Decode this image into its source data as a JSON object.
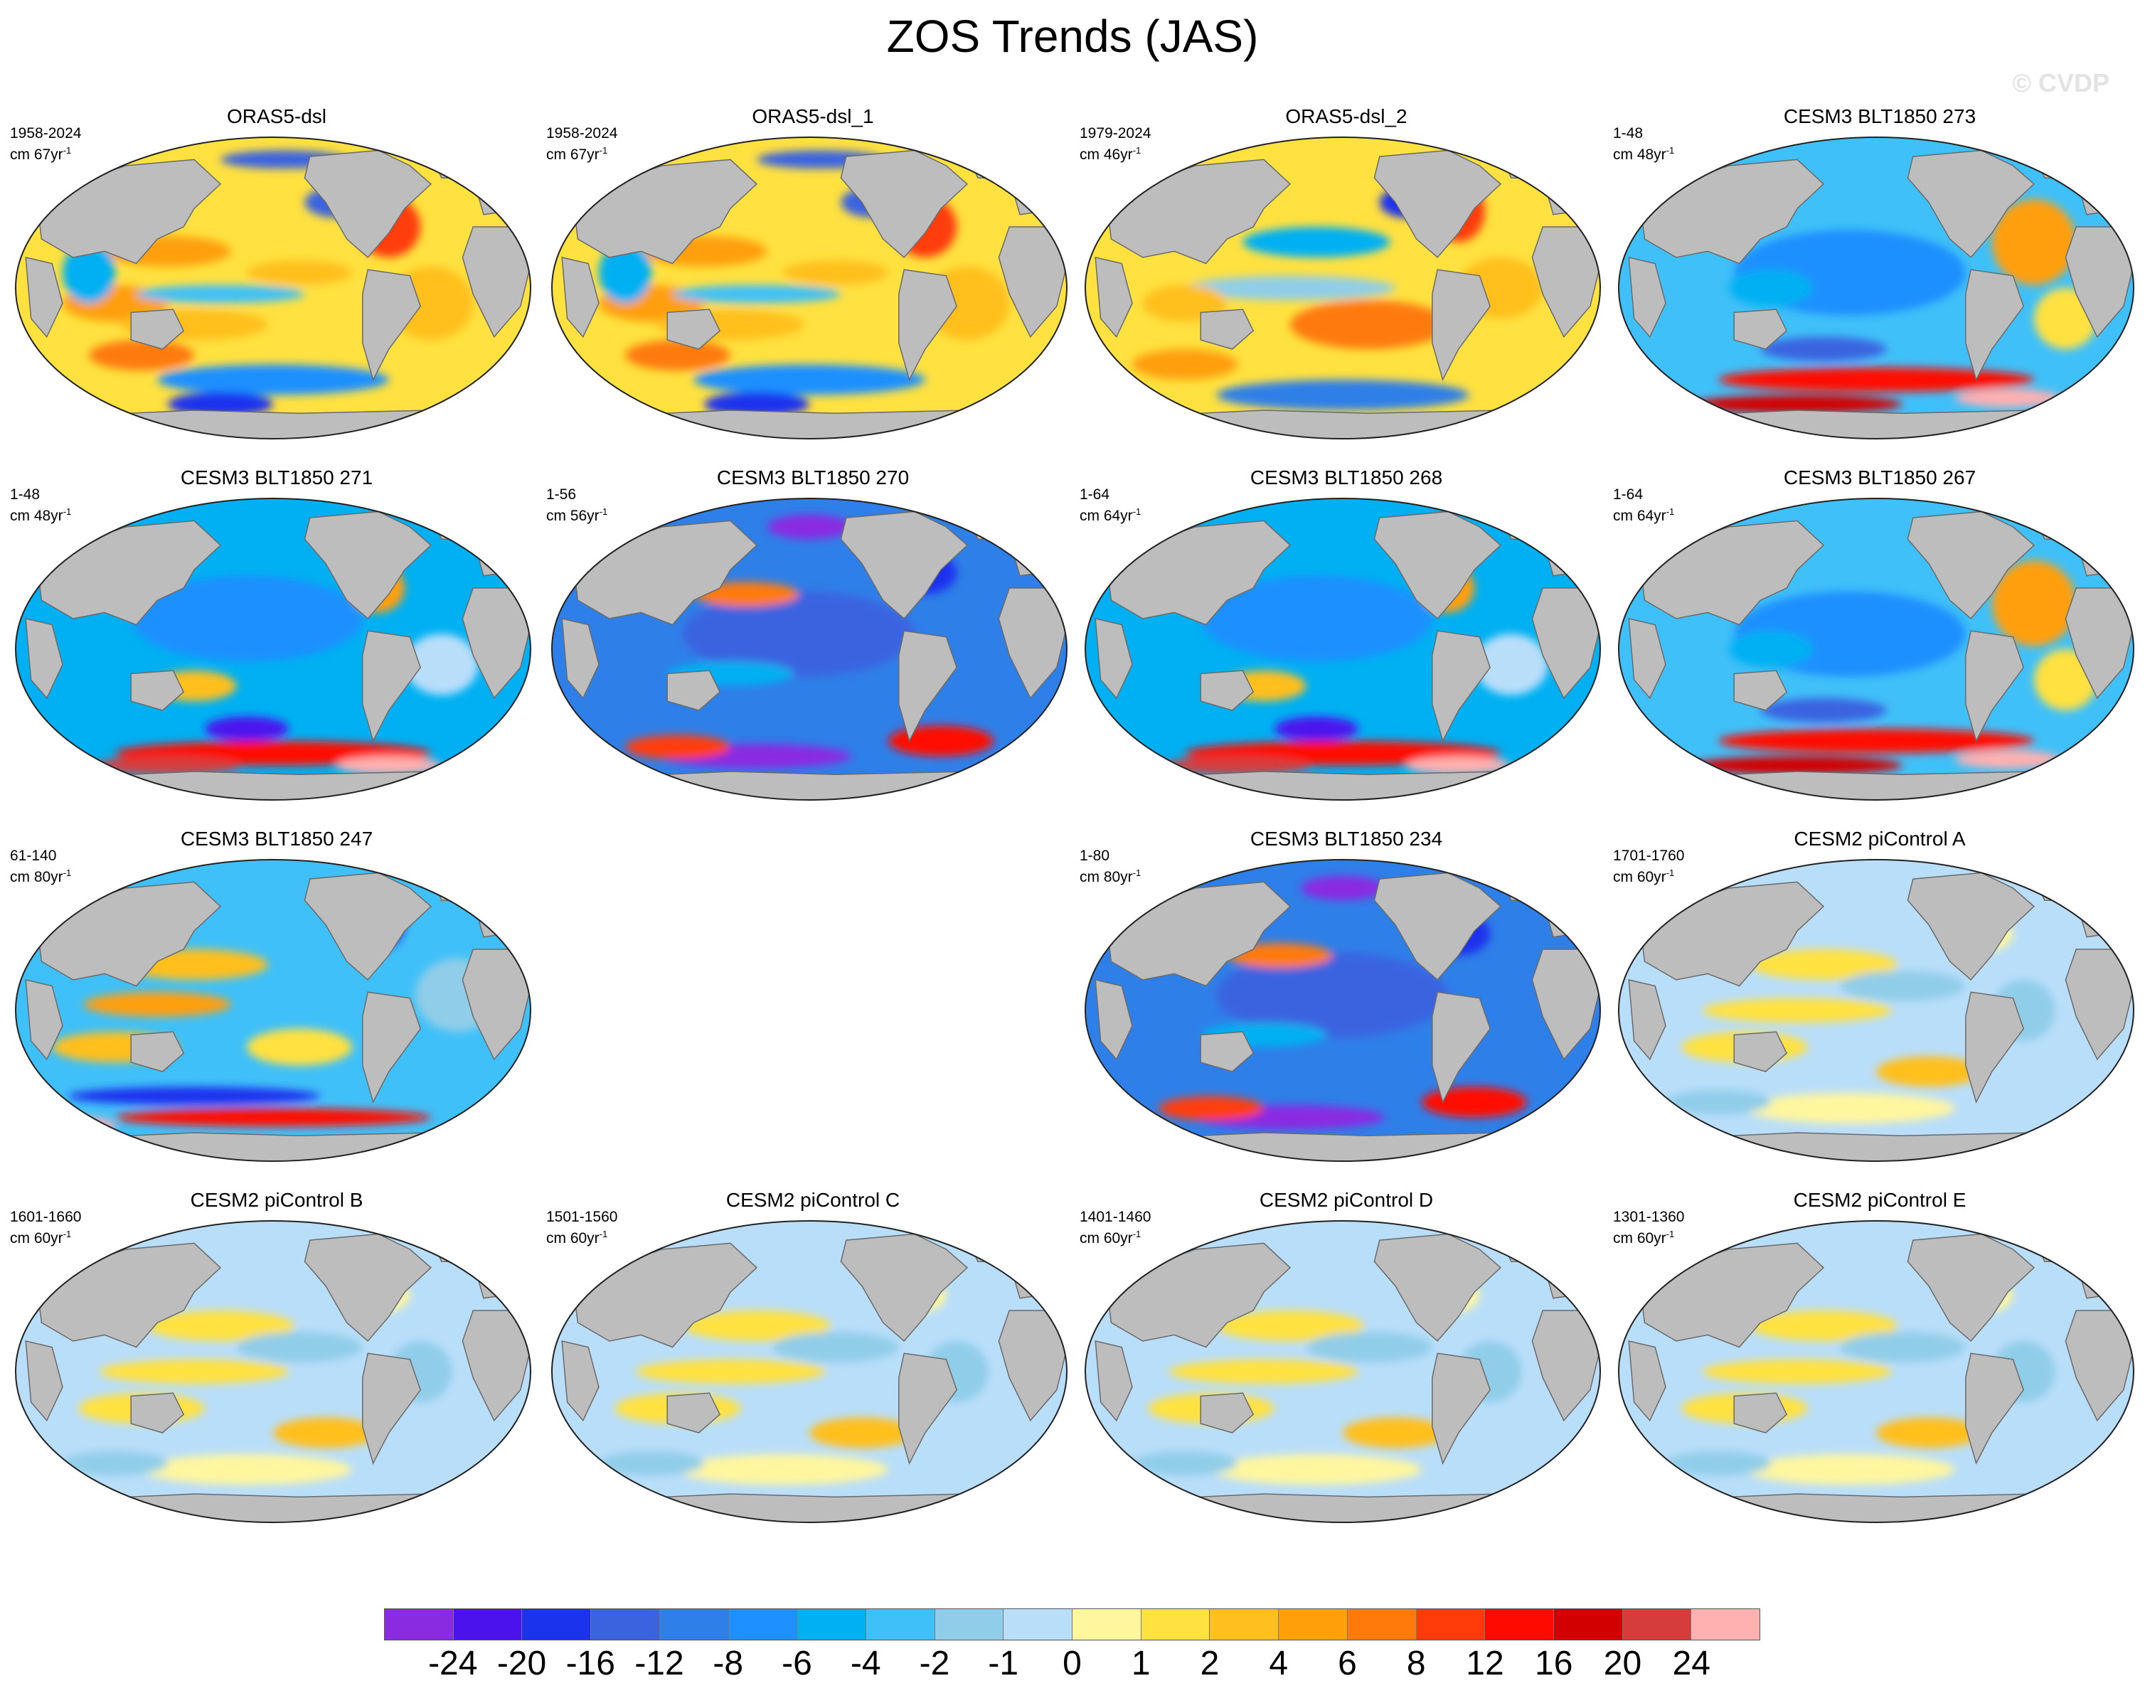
{
  "title": "ZOS Trends (JAS)",
  "watermark": "© CVDP",
  "panels": [
    {
      "title": "ORAS5-dsl",
      "period": "1958-2024",
      "units": "cm 67yr",
      "units_exp": "-1",
      "pattern": "obs1"
    },
    {
      "title": "ORAS5-dsl_1",
      "period": "1958-2024",
      "units": "cm 67yr",
      "units_exp": "-1",
      "pattern": "obs1"
    },
    {
      "title": "ORAS5-dsl_2",
      "period": "1979-2024",
      "units": "cm 46yr",
      "units_exp": "-1",
      "pattern": "obs2"
    },
    {
      "title": "CESM3 BLT1850 273",
      "period": "1-48",
      "units": "cm 48yr",
      "units_exp": "-1",
      "pattern": "cesm3_a"
    },
    {
      "title": "CESM3 BLT1850 271",
      "period": "1-48",
      "units": "cm 48yr",
      "units_exp": "-1",
      "pattern": "cesm3_b"
    },
    {
      "title": "CESM3 BLT1850 270",
      "period": "1-56",
      "units": "cm 56yr",
      "units_exp": "-1",
      "pattern": "cesm3_c"
    },
    {
      "title": "CESM3 BLT1850 268",
      "period": "1-64",
      "units": "cm 64yr",
      "units_exp": "-1",
      "pattern": "cesm3_b"
    },
    {
      "title": "CESM3 BLT1850 267",
      "period": "1-64",
      "units": "cm 64yr",
      "units_exp": "-1",
      "pattern": "cesm3_a"
    },
    {
      "title": "CESM3 BLT1850 247",
      "period": "61-140",
      "units": "cm 80yr",
      "units_exp": "-1",
      "pattern": "cesm3_d"
    },
    null,
    {
      "title": "CESM3 BLT1850 234",
      "period": "1-80",
      "units": "cm 80yr",
      "units_exp": "-1",
      "pattern": "cesm3_c"
    },
    {
      "title": "CESM2 piControl A",
      "period": "1701-1760",
      "units": "cm 60yr",
      "units_exp": "-1",
      "pattern": "cesm2"
    },
    {
      "title": "CESM2 piControl B",
      "period": "1601-1660",
      "units": "cm 60yr",
      "units_exp": "-1",
      "pattern": "cesm2"
    },
    {
      "title": "CESM2 piControl C",
      "period": "1501-1560",
      "units": "cm 60yr",
      "units_exp": "-1",
      "pattern": "cesm2"
    },
    {
      "title": "CESM2 piControl D",
      "period": "1401-1460",
      "units": "cm 60yr",
      "units_exp": "-1",
      "pattern": "cesm2"
    },
    {
      "title": "CESM2 piControl E",
      "period": "1301-1360",
      "units": "cm 60yr",
      "units_exp": "-1",
      "pattern": "cesm2"
    }
  ],
  "colorbar": {
    "colors": [
      "#8a2be2",
      "#4b12ee",
      "#1c33ee",
      "#3b63e0",
      "#2f7fe8",
      "#1e90ff",
      "#00b0f2",
      "#40c0f8",
      "#90cde8",
      "#b9defa",
      "#fff69e",
      "#ffe140",
      "#ffbf1e",
      "#ff9f0a",
      "#ff7a0a",
      "#ff3c0a",
      "#ff0a00",
      "#d20000",
      "#d63c3c",
      "#ffb0b0"
    ],
    "labels": [
      "-24",
      "-20",
      "-16",
      "-12",
      "-8",
      "-6",
      "-4",
      "-2",
      "-1",
      "0",
      "1",
      "2",
      "4",
      "6",
      "8",
      "12",
      "16",
      "20",
      "24"
    ]
  },
  "colors": {
    "land": "#bdbdbd",
    "coast": "#6a6a6a"
  }
}
